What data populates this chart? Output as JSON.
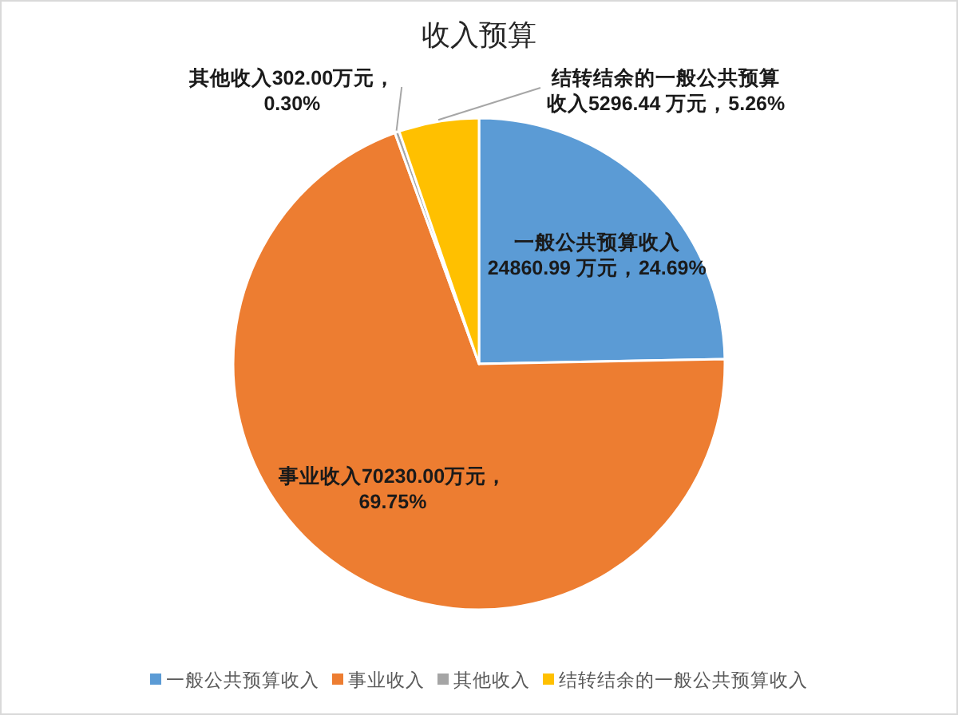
{
  "chart_data": {
    "type": "pie",
    "title": "收入预算",
    "categories": [
      "一般公共预算收入",
      "事业收入",
      "其他收入",
      "结转结余的一般公共预算收入"
    ],
    "values": [
      24860.99,
      70230.0,
      302.0,
      5296.44
    ],
    "colors": [
      "#5b9bd5",
      "#ed7d31",
      "#a5a5a5",
      "#ffc000"
    ],
    "value_labels": [
      "一般公共预算收入24860.99 万元，24.69%",
      "事业收入70230.00万元，69.75%",
      "其他收入302.00万元，0.30%",
      "结转结余的一般公共预算收入5296.44 万元，5.26%"
    ],
    "legend": "bottom"
  }
}
